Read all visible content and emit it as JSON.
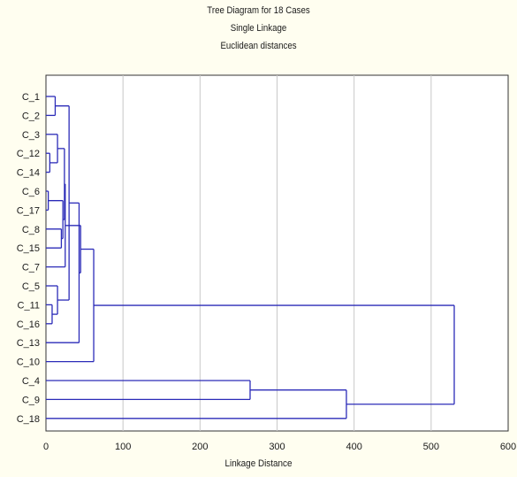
{
  "chart_data": {
    "type": "dendrogram",
    "title": "Tree Diagram for 18 Cases",
    "subtitle_lines": [
      "Single Linkage",
      "Euclidean distances"
    ],
    "xlabel": "Linkage Distance",
    "ylabel": "",
    "xlim": [
      0,
      600
    ],
    "x_ticks": [
      0,
      100,
      200,
      300,
      400,
      500,
      600
    ],
    "grid": "vertical",
    "leaves": [
      "C_1",
      "C_2",
      "C_3",
      "C_12",
      "C_14",
      "C_6",
      "C_17",
      "C_8",
      "C_15",
      "C_7",
      "C_5",
      "C_11",
      "C_16",
      "C_13",
      "C_10",
      "C_4",
      "C_9",
      "C_18"
    ],
    "merges": [
      {
        "a": "C_6",
        "b": "C_17",
        "height": 3
      },
      {
        "a": "C_11",
        "b": "C_16",
        "height": 8
      },
      {
        "a": "C_1",
        "b": "C_2",
        "height": 12
      },
      {
        "a": "C_12",
        "b": "C_14",
        "height": 5
      },
      {
        "a": "C_3",
        "b": [
          "C_12",
          "C_14"
        ],
        "height": 15
      },
      {
        "a": "C_5",
        "b": [
          "C_11",
          "C_16"
        ],
        "height": 15
      },
      {
        "a": "C_8",
        "b": "C_15",
        "height": 20
      },
      {
        "a": [
          "C_6",
          "C_17"
        ],
        "b": [
          "C_8",
          "C_15"
        ],
        "height": 22
      },
      {
        "a": [
          "C_3",
          "C_12",
          "C_14"
        ],
        "b": [
          "C_6",
          "C_17",
          "C_8",
          "C_15"
        ],
        "height": 24
      },
      {
        "a": [
          "C_3",
          "C_12",
          "C_14",
          "C_6",
          "C_17",
          "C_8",
          "C_15"
        ],
        "b": "C_7",
        "height": 25
      },
      {
        "a": [
          "C_1",
          "C_2"
        ],
        "b": [
          "C_5",
          "C_11",
          "C_16"
        ],
        "height": 30
      },
      {
        "a": "C_13",
        "b": [
          "C_1",
          "C_2",
          "C_5",
          "C_11",
          "C_16"
        ],
        "height": 43
      },
      {
        "a": [
          "C_3",
          "C_12",
          "C_14",
          "C_6",
          "C_17",
          "C_8",
          "C_15",
          "C_7"
        ],
        "b": [
          "C_13",
          "C_1",
          "C_2",
          "C_5",
          "C_11",
          "C_16"
        ],
        "height": 45
      },
      {
        "a": "C_10",
        "b": "cluster_A",
        "height": 62
      },
      {
        "a": "C_4",
        "b": "C_9",
        "height": 265
      },
      {
        "a": "C_18",
        "b": [
          "C_4",
          "C_9"
        ],
        "height": 390
      },
      {
        "a": "cluster_B",
        "b": "cluster_C",
        "height": 530
      }
    ],
    "line_color": "#2b2bb8"
  }
}
